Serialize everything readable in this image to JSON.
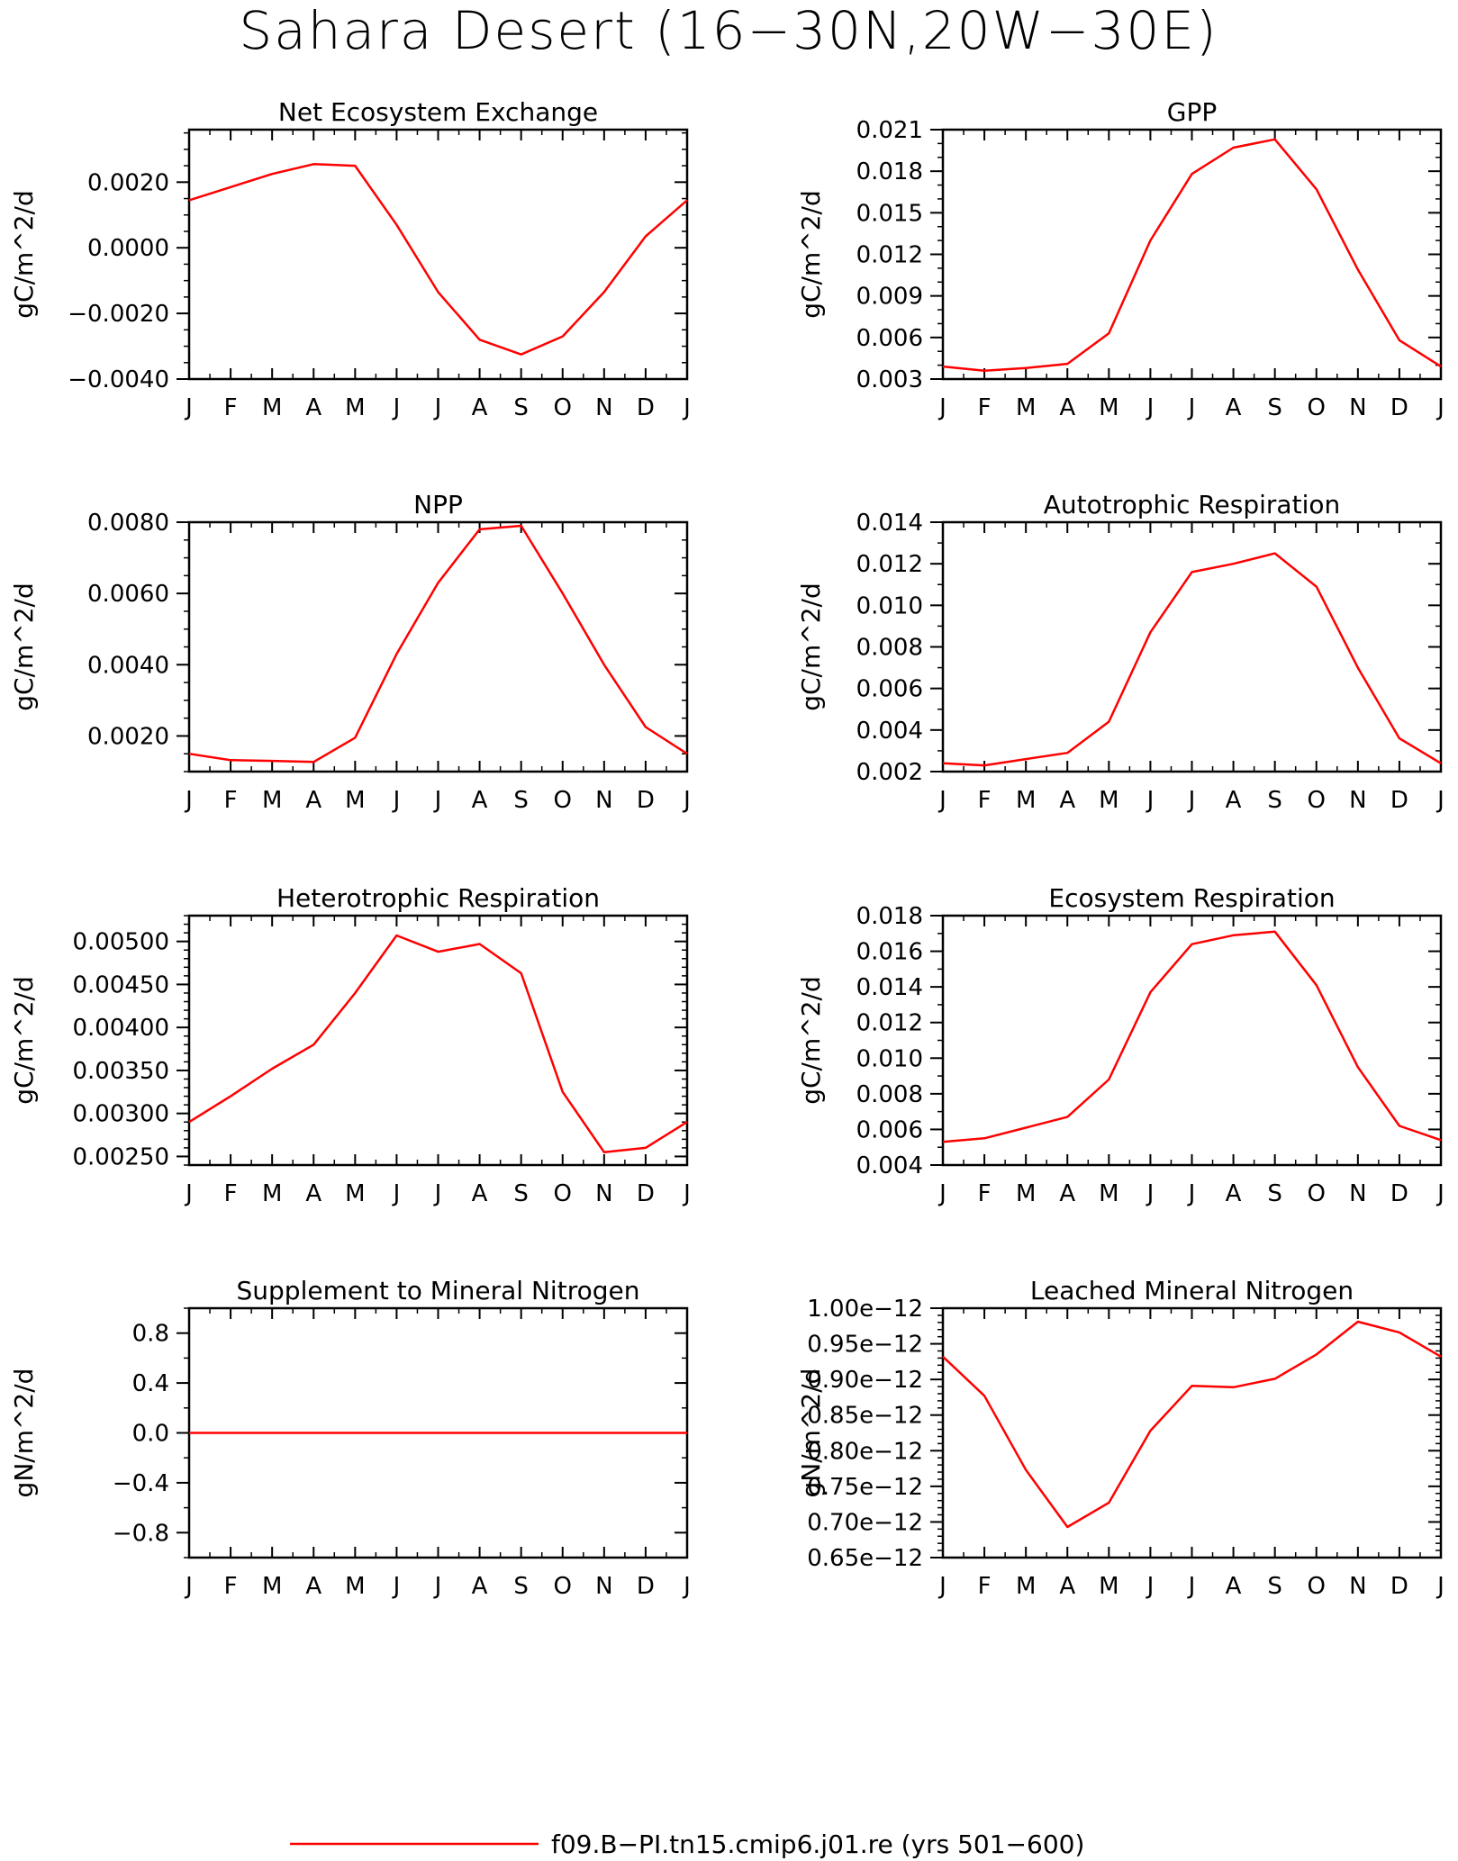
{
  "figure": {
    "title": "Sahara Desert (16−30N,20W−30E)",
    "legend": {
      "series_name": "f09.B−PI.tn15.cmip6.j01.re (yrs 501−600)",
      "color": "#ff0000"
    }
  },
  "chart_data": [
    {
      "type": "line",
      "title": "Net Ecosystem Exchange",
      "ylabel": "gC/m^2/d",
      "x": [
        "J",
        "F",
        "M",
        "A",
        "M",
        "J",
        "J",
        "A",
        "S",
        "O",
        "N",
        "D",
        "J"
      ],
      "ylim": [
        -0.004,
        0.0036
      ],
      "yticks": [
        -0.004,
        -0.002,
        0.0,
        0.002
      ],
      "ytick_labels": [
        "−0.0040",
        "−0.0020",
        "0.0000",
        "0.0020"
      ],
      "yminor": 0.0005,
      "series": [
        {
          "values": [
            0.00145,
            0.00185,
            0.00225,
            0.00255,
            0.0025,
            0.0007,
            -0.00135,
            -0.0028,
            -0.00325,
            -0.0027,
            -0.00135,
            0.00035,
            0.00145
          ]
        }
      ]
    },
    {
      "type": "line",
      "title": "GPP",
      "ylabel": "gC/m^2/d",
      "x": [
        "J",
        "F",
        "M",
        "A",
        "M",
        "J",
        "J",
        "A",
        "S",
        "O",
        "N",
        "D",
        "J"
      ],
      "ylim": [
        0.003,
        0.021
      ],
      "yticks": [
        0.003,
        0.006,
        0.009,
        0.012,
        0.015,
        0.018,
        0.021
      ],
      "ytick_labels": [
        "0.003",
        "0.006",
        "0.009",
        "0.012",
        "0.015",
        "0.018",
        "0.021"
      ],
      "yminor": 0.001,
      "series": [
        {
          "values": [
            0.0039,
            0.0036,
            0.0038,
            0.0041,
            0.0063,
            0.013,
            0.0178,
            0.0197,
            0.0203,
            0.0167,
            0.0109,
            0.0058,
            0.0039
          ]
        }
      ]
    },
    {
      "type": "line",
      "title": "NPP",
      "ylabel": "gC/m^2/d",
      "x": [
        "J",
        "F",
        "M",
        "A",
        "M",
        "J",
        "J",
        "A",
        "S",
        "O",
        "N",
        "D",
        "J"
      ],
      "ylim": [
        0.001,
        0.008
      ],
      "yticks": [
        0.002,
        0.004,
        0.006,
        0.008
      ],
      "ytick_labels": [
        "0.0020",
        "0.0040",
        "0.0060",
        "0.0080"
      ],
      "yminor": 0.0005,
      "series": [
        {
          "values": [
            0.0015,
            0.00132,
            0.0013,
            0.00127,
            0.00195,
            0.0043,
            0.0063,
            0.0078,
            0.0079,
            0.006,
            0.004,
            0.00225,
            0.0015
          ]
        }
      ]
    },
    {
      "type": "line",
      "title": "Autotrophic Respiration",
      "ylabel": "gC/m^2/d",
      "x": [
        "J",
        "F",
        "M",
        "A",
        "M",
        "J",
        "J",
        "A",
        "S",
        "O",
        "N",
        "D",
        "J"
      ],
      "ylim": [
        0.002,
        0.014
      ],
      "yticks": [
        0.002,
        0.004,
        0.006,
        0.008,
        0.01,
        0.012,
        0.014
      ],
      "ytick_labels": [
        "0.002",
        "0.004",
        "0.006",
        "0.008",
        "0.010",
        "0.012",
        "0.014"
      ],
      "yminor": 0.001,
      "series": [
        {
          "values": [
            0.0024,
            0.0023,
            0.0026,
            0.0029,
            0.0044,
            0.0087,
            0.0116,
            0.012,
            0.0125,
            0.0109,
            0.007,
            0.0036,
            0.0024
          ]
        }
      ]
    },
    {
      "type": "line",
      "title": "Heterotrophic Respiration",
      "ylabel": "gC/m^2/d",
      "x": [
        "J",
        "F",
        "M",
        "A",
        "M",
        "J",
        "J",
        "A",
        "S",
        "O",
        "N",
        "D",
        "J"
      ],
      "ylim": [
        0.0024,
        0.0053
      ],
      "yticks": [
        0.0025,
        0.003,
        0.0035,
        0.004,
        0.0045,
        0.005
      ],
      "ytick_labels": [
        "0.00250",
        "0.00300",
        "0.00350",
        "0.00400",
        "0.00450",
        "0.00500"
      ],
      "yminor": 0.0001,
      "series": [
        {
          "values": [
            0.0029,
            0.0032,
            0.00352,
            0.0038,
            0.0044,
            0.00507,
            0.00488,
            0.00497,
            0.00463,
            0.00325,
            0.00255,
            0.0026,
            0.0029
          ]
        }
      ]
    },
    {
      "type": "line",
      "title": "Ecosystem Respiration",
      "ylabel": "gC/m^2/d",
      "x": [
        "J",
        "F",
        "M",
        "A",
        "M",
        "J",
        "J",
        "A",
        "S",
        "O",
        "N",
        "D",
        "J"
      ],
      "ylim": [
        0.004,
        0.018
      ],
      "yticks": [
        0.004,
        0.006,
        0.008,
        0.01,
        0.012,
        0.014,
        0.016,
        0.018
      ],
      "ytick_labels": [
        "0.004",
        "0.006",
        "0.008",
        "0.010",
        "0.012",
        "0.014",
        "0.016",
        "0.018"
      ],
      "yminor": 0.001,
      "series": [
        {
          "values": [
            0.0053,
            0.0055,
            0.0061,
            0.0067,
            0.0088,
            0.0137,
            0.0164,
            0.0169,
            0.0171,
            0.0141,
            0.0095,
            0.0062,
            0.0054
          ]
        }
      ]
    },
    {
      "type": "line",
      "title": "Supplement to Mineral Nitrogen",
      "ylabel": "gN/m^2/d",
      "x": [
        "J",
        "F",
        "M",
        "A",
        "M",
        "J",
        "J",
        "A",
        "S",
        "O",
        "N",
        "D",
        "J"
      ],
      "ylim": [
        -1.0,
        1.0
      ],
      "yticks": [
        -0.8,
        -0.4,
        0.0,
        0.4,
        0.8
      ],
      "ytick_labels": [
        "−0.8",
        "−0.4",
        "0.0",
        "0.4",
        "0.8"
      ],
      "yminor": 0.2,
      "series": [
        {
          "values": [
            0,
            0,
            0,
            0,
            0,
            0,
            0,
            0,
            0,
            0,
            0,
            0,
            0
          ]
        }
      ]
    },
    {
      "type": "line",
      "title": "Leached Mineral Nitrogen",
      "ylabel": "gN/m^2/d",
      "x": [
        "J",
        "F",
        "M",
        "A",
        "M",
        "J",
        "J",
        "A",
        "S",
        "O",
        "N",
        "D",
        "J"
      ],
      "ylim": [
        6.5e-13,
        1e-12
      ],
      "yticks": [
        6.5e-13,
        7e-13,
        7.5e-13,
        8e-13,
        8.5e-13,
        9e-13,
        9.5e-13,
        1e-12
      ],
      "ytick_labels": [
        "0.65e−12",
        "0.70e−12",
        "0.75e−12",
        "0.80e−12",
        "0.85e−12",
        "0.90e−12",
        "0.95e−12",
        "1.00e−12"
      ],
      "yminor": 1e-14,
      "series": [
        {
          "values": [
            9.32e-13,
            8.77e-13,
            7.73e-13,
            6.93e-13,
            7.27e-13,
            8.28e-13,
            8.91e-13,
            8.89e-13,
            9.01e-13,
            9.35e-13,
            9.81e-13,
            9.66e-13,
            9.32e-13
          ]
        }
      ]
    }
  ]
}
